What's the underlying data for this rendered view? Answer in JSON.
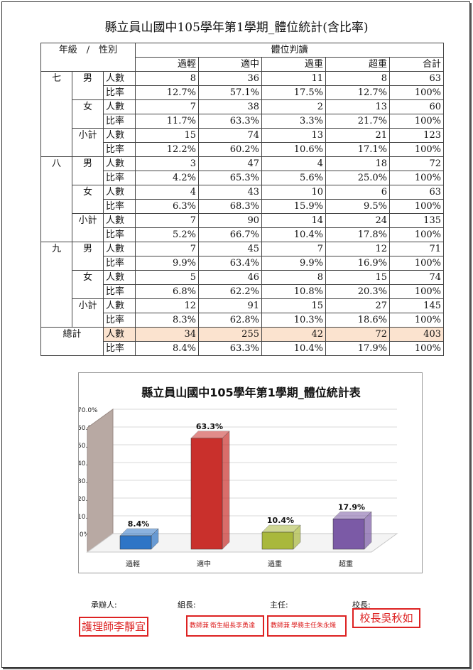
{
  "title": "縣立員山國中105學年第1學期_體位統計(含比率)",
  "header": {
    "grade_gender": "年級　/　性別",
    "judgment": "體位判讀",
    "cols": [
      "過輕",
      "適中",
      "過重",
      "超重",
      "合計"
    ]
  },
  "grades": [
    {
      "name": "七",
      "groups": [
        {
          "name": "男",
          "count": [
            "8",
            "36",
            "11",
            "8",
            "63"
          ],
          "rate": [
            "12.7%",
            "57.1%",
            "17.5%",
            "12.7%",
            "100%"
          ]
        },
        {
          "name": "女",
          "count": [
            "7",
            "38",
            "2",
            "13",
            "60"
          ],
          "rate": [
            "11.7%",
            "63.3%",
            "3.3%",
            "21.7%",
            "100%"
          ]
        },
        {
          "name": "小計",
          "count": [
            "15",
            "74",
            "13",
            "21",
            "123"
          ],
          "rate": [
            "12.2%",
            "60.2%",
            "10.6%",
            "17.1%",
            "100%"
          ]
        }
      ]
    },
    {
      "name": "八",
      "groups": [
        {
          "name": "男",
          "count": [
            "3",
            "47",
            "4",
            "18",
            "72"
          ],
          "rate": [
            "4.2%",
            "65.3%",
            "5.6%",
            "25.0%",
            "100%"
          ]
        },
        {
          "name": "女",
          "count": [
            "4",
            "43",
            "10",
            "6",
            "63"
          ],
          "rate": [
            "6.3%",
            "68.3%",
            "15.9%",
            "9.5%",
            "100%"
          ]
        },
        {
          "name": "小計",
          "count": [
            "7",
            "90",
            "14",
            "24",
            "135"
          ],
          "rate": [
            "5.2%",
            "66.7%",
            "10.4%",
            "17.8%",
            "100%"
          ]
        }
      ]
    },
    {
      "name": "九",
      "groups": [
        {
          "name": "男",
          "count": [
            "7",
            "45",
            "7",
            "12",
            "71"
          ],
          "rate": [
            "9.9%",
            "63.4%",
            "9.9%",
            "16.9%",
            "100%"
          ]
        },
        {
          "name": "女",
          "count": [
            "5",
            "46",
            "8",
            "15",
            "74"
          ],
          "rate": [
            "6.8%",
            "62.2%",
            "10.8%",
            "20.3%",
            "100%"
          ]
        },
        {
          "name": "小計",
          "count": [
            "12",
            "91",
            "15",
            "27",
            "145"
          ],
          "rate": [
            "8.3%",
            "62.8%",
            "10.3%",
            "18.6%",
            "100%"
          ]
        }
      ]
    }
  ],
  "total": {
    "name": "總計",
    "count": [
      "34",
      "255",
      "42",
      "72",
      "403"
    ],
    "rate": [
      "8.4%",
      "63.3%",
      "10.4%",
      "17.9%",
      "100%"
    ]
  },
  "row_labels": {
    "count": "人數",
    "rate": "比率"
  },
  "chart_data": {
    "type": "bar",
    "title": "縣立員山國中105學年第1學期_體位統計表",
    "categories": [
      "過輕",
      "適中",
      "過重",
      "超重"
    ],
    "values": [
      8.4,
      63.3,
      10.4,
      17.9
    ],
    "labels": [
      "8.4%",
      "63.3%",
      "10.4%",
      "17.9%"
    ],
    "colors": [
      "#2e75c6",
      "#c9302c",
      "#a9b83c",
      "#7b5aa6"
    ],
    "ylim": [
      0,
      70
    ],
    "yticks": [
      ".0%",
      "10.0%",
      "20.0%",
      "30.0%",
      "40.0%",
      "50.0%",
      "60.0%",
      "70.0%"
    ],
    "grid": true,
    "xlabel": "",
    "ylabel": ""
  },
  "signatures": [
    {
      "label": "承辦人:",
      "stamp_line1": "護理師李靜宜",
      "stamp_line2": ""
    },
    {
      "label": "組長:",
      "stamp_line1": "教師兼",
      "stamp_line2": "衛生組長李勇達"
    },
    {
      "label": "主任:",
      "stamp_line1": "教師兼",
      "stamp_line2": "學務主任朱永熾"
    },
    {
      "label": "校長:",
      "stamp_line1": "校長吳秋如",
      "stamp_line2": ""
    }
  ]
}
